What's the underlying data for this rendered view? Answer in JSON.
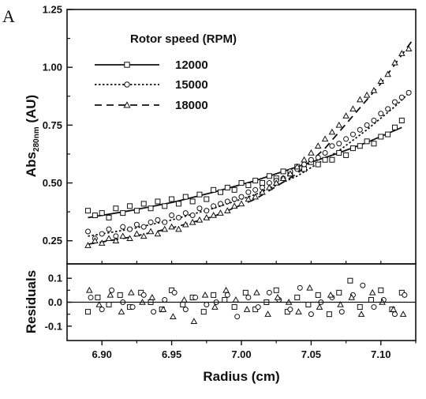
{
  "panel_label": "A",
  "chart_data": [
    {
      "type": "scatter",
      "panel": "top",
      "title": "",
      "xlabel": "",
      "ylabel_main": "Abs",
      "ylabel_sub": "280nm",
      "ylabel_unit": " (AU)",
      "xlim": [
        6.875,
        7.125
      ],
      "ylim": [
        0.15,
        1.25
      ],
      "yticks": [
        0.25,
        0.5,
        0.75,
        1.0,
        1.25
      ],
      "ytick_labels": [
        "0.25",
        "0.50",
        "0.75",
        "1.00",
        "1.25"
      ],
      "legend_title": "Rotor speed (RPM)",
      "legend_placement": "top-left",
      "series": [
        {
          "name": "12000",
          "marker": "square",
          "line_style": "solid",
          "fit_x": [
            6.89,
            6.92,
            6.95,
            6.98,
            7.01,
            7.04,
            7.07,
            7.09,
            7.115
          ],
          "fit_y": [
            0.35,
            0.38,
            0.415,
            0.46,
            0.51,
            0.57,
            0.63,
            0.675,
            0.74
          ],
          "points_x": [
            6.89,
            6.895,
            6.9,
            6.905,
            6.91,
            6.915,
            6.92,
            6.925,
            6.93,
            6.935,
            6.94,
            6.945,
            6.95,
            6.955,
            6.96,
            6.965,
            6.97,
            6.975,
            6.98,
            6.985,
            6.99,
            6.995,
            7.0,
            7.005,
            7.01,
            7.015,
            7.02,
            7.025,
            7.03,
            7.035,
            7.04,
            7.045,
            7.05,
            7.055,
            7.06,
            7.065,
            7.07,
            7.075,
            7.08,
            7.085,
            7.09,
            7.095,
            7.1,
            7.105,
            7.11,
            7.115
          ],
          "points_y": [
            0.38,
            0.36,
            0.37,
            0.35,
            0.39,
            0.37,
            0.4,
            0.38,
            0.41,
            0.39,
            0.42,
            0.4,
            0.43,
            0.41,
            0.44,
            0.42,
            0.45,
            0.43,
            0.47,
            0.46,
            0.48,
            0.47,
            0.5,
            0.49,
            0.51,
            0.5,
            0.53,
            0.52,
            0.55,
            0.54,
            0.57,
            0.56,
            0.59,
            0.58,
            0.6,
            0.6,
            0.63,
            0.62,
            0.65,
            0.66,
            0.68,
            0.67,
            0.7,
            0.71,
            0.74,
            0.77
          ]
        },
        {
          "name": "15000",
          "marker": "circle",
          "line_style": "dotted",
          "fit_x": [
            6.89,
            6.92,
            6.95,
            6.98,
            7.01,
            7.04,
            7.07,
            7.09,
            7.11,
            7.122
          ],
          "fit_y": [
            0.27,
            0.3,
            0.34,
            0.39,
            0.45,
            0.53,
            0.64,
            0.73,
            0.83,
            0.9
          ],
          "points_x": [
            6.89,
            6.895,
            6.9,
            6.905,
            6.91,
            6.915,
            6.92,
            6.925,
            6.93,
            6.935,
            6.94,
            6.945,
            6.95,
            6.955,
            6.96,
            6.965,
            6.97,
            6.975,
            6.98,
            6.985,
            6.99,
            6.995,
            7.0,
            7.005,
            7.01,
            7.015,
            7.02,
            7.025,
            7.03,
            7.035,
            7.04,
            7.045,
            7.05,
            7.055,
            7.06,
            7.065,
            7.07,
            7.075,
            7.08,
            7.085,
            7.09,
            7.095,
            7.1,
            7.105,
            7.11,
            7.115,
            7.12
          ],
          "points_y": [
            0.29,
            0.26,
            0.28,
            0.3,
            0.27,
            0.31,
            0.3,
            0.32,
            0.31,
            0.33,
            0.34,
            0.33,
            0.36,
            0.35,
            0.37,
            0.36,
            0.39,
            0.38,
            0.4,
            0.41,
            0.42,
            0.43,
            0.44,
            0.46,
            0.47,
            0.48,
            0.5,
            0.51,
            0.52,
            0.55,
            0.56,
            0.58,
            0.6,
            0.61,
            0.63,
            0.66,
            0.67,
            0.69,
            0.71,
            0.73,
            0.75,
            0.77,
            0.8,
            0.82,
            0.85,
            0.87,
            0.89
          ]
        },
        {
          "name": "18000",
          "marker": "triangle",
          "line_style": "dashed",
          "fit_x": [
            6.89,
            6.92,
            6.95,
            6.98,
            7.01,
            7.04,
            7.06,
            7.08,
            7.1,
            7.123
          ],
          "fit_y": [
            0.235,
            0.265,
            0.305,
            0.355,
            0.43,
            0.54,
            0.65,
            0.79,
            0.93,
            1.12
          ],
          "points_x": [
            6.89,
            6.895,
            6.9,
            6.905,
            6.91,
            6.915,
            6.92,
            6.925,
            6.93,
            6.935,
            6.94,
            6.945,
            6.95,
            6.955,
            6.96,
            6.965,
            6.97,
            6.975,
            6.98,
            6.985,
            6.99,
            6.995,
            7.0,
            7.005,
            7.01,
            7.015,
            7.02,
            7.025,
            7.03,
            7.035,
            7.04,
            7.045,
            7.05,
            7.055,
            7.06,
            7.065,
            7.07,
            7.075,
            7.08,
            7.085,
            7.09,
            7.095,
            7.1,
            7.105,
            7.11,
            7.115,
            7.12
          ],
          "points_y": [
            0.23,
            0.25,
            0.24,
            0.26,
            0.25,
            0.27,
            0.26,
            0.28,
            0.27,
            0.29,
            0.28,
            0.3,
            0.31,
            0.3,
            0.32,
            0.33,
            0.34,
            0.35,
            0.36,
            0.37,
            0.38,
            0.4,
            0.41,
            0.43,
            0.44,
            0.46,
            0.48,
            0.5,
            0.52,
            0.54,
            0.57,
            0.6,
            0.63,
            0.66,
            0.69,
            0.72,
            0.75,
            0.79,
            0.82,
            0.86,
            0.88,
            0.9,
            0.94,
            0.97,
            1.02,
            1.06,
            1.08
          ]
        }
      ]
    },
    {
      "type": "scatter",
      "panel": "bottom",
      "title": "",
      "xlabel": "Radius (cm)",
      "ylabel": "Residuals",
      "xlim": [
        6.875,
        7.125
      ],
      "ylim": [
        -0.16,
        0.16
      ],
      "xticks": [
        6.9,
        6.95,
        7.0,
        7.05,
        7.1
      ],
      "xtick_labels": [
        "6.90",
        "6.95",
        "7.00",
        "7.05",
        "7.10"
      ],
      "yticks": [
        0.1,
        0.0,
        -0.1
      ],
      "ytick_labels": [
        "0.1",
        "0.0",
        "-0.1"
      ],
      "zero_line": true,
      "series": [
        {
          "name": "12000",
          "marker": "square",
          "x": [
            6.89,
            6.897,
            6.905,
            6.913,
            6.92,
            6.928,
            6.935,
            6.943,
            6.95,
            6.958,
            6.965,
            6.973,
            6.98,
            6.988,
            6.995,
            7.003,
            7.01,
            7.018,
            7.025,
            7.033,
            7.04,
            7.048,
            7.055,
            7.063,
            7.07,
            7.078,
            7.085,
            7.093,
            7.1,
            7.108,
            7.115
          ],
          "y": [
            -0.04,
            0.02,
            -0.01,
            0.03,
            -0.02,
            0.04,
            0.0,
            -0.03,
            0.05,
            -0.01,
            0.02,
            -0.04,
            0.03,
            0.01,
            -0.02,
            0.04,
            -0.03,
            0.0,
            0.05,
            -0.04,
            0.02,
            -0.01,
            0.03,
            -0.05,
            0.04,
            0.09,
            -0.02,
            0.01,
            0.05,
            -0.03,
            0.04
          ]
        },
        {
          "name": "15000",
          "marker": "circle",
          "x": [
            6.892,
            6.9,
            6.907,
            6.915,
            6.922,
            6.93,
            6.937,
            6.945,
            6.952,
            6.96,
            6.967,
            6.975,
            6.982,
            6.99,
            6.997,
            7.005,
            7.012,
            7.02,
            7.027,
            7.035,
            7.042,
            7.05,
            7.057,
            7.065,
            7.072,
            7.08,
            7.087,
            7.095,
            7.102,
            7.11,
            7.117
          ],
          "y": [
            0.02,
            -0.03,
            0.05,
            0.0,
            -0.02,
            0.03,
            -0.04,
            0.01,
            0.04,
            -0.03,
            0.02,
            -0.01,
            0.0,
            0.03,
            -0.06,
            0.02,
            -0.02,
            0.04,
            0.01,
            -0.03,
            0.06,
            -0.05,
            0.0,
            0.02,
            -0.04,
            0.03,
            0.07,
            -0.02,
            0.01,
            -0.05,
            0.03
          ]
        },
        {
          "name": "18000",
          "marker": "triangle",
          "x": [
            6.891,
            6.898,
            6.906,
            6.914,
            6.921,
            6.929,
            6.936,
            6.944,
            6.951,
            6.959,
            6.966,
            6.974,
            6.981,
            6.989,
            6.996,
            7.004,
            7.011,
            7.019,
            7.026,
            7.034,
            7.041,
            7.049,
            7.056,
            7.064,
            7.071,
            7.079,
            7.086,
            7.094,
            7.101,
            7.109,
            7.116
          ],
          "y": [
            0.05,
            -0.01,
            0.03,
            -0.04,
            0.04,
            0.0,
            0.02,
            -0.03,
            -0.06,
            0.01,
            -0.08,
            0.03,
            -0.02,
            0.05,
            0.01,
            -0.03,
            0.04,
            -0.05,
            0.02,
            0.0,
            -0.04,
            0.06,
            -0.02,
            0.03,
            -0.01,
            0.02,
            -0.05,
            0.04,
            0.0,
            -0.03,
            -0.05
          ]
        }
      ]
    }
  ]
}
